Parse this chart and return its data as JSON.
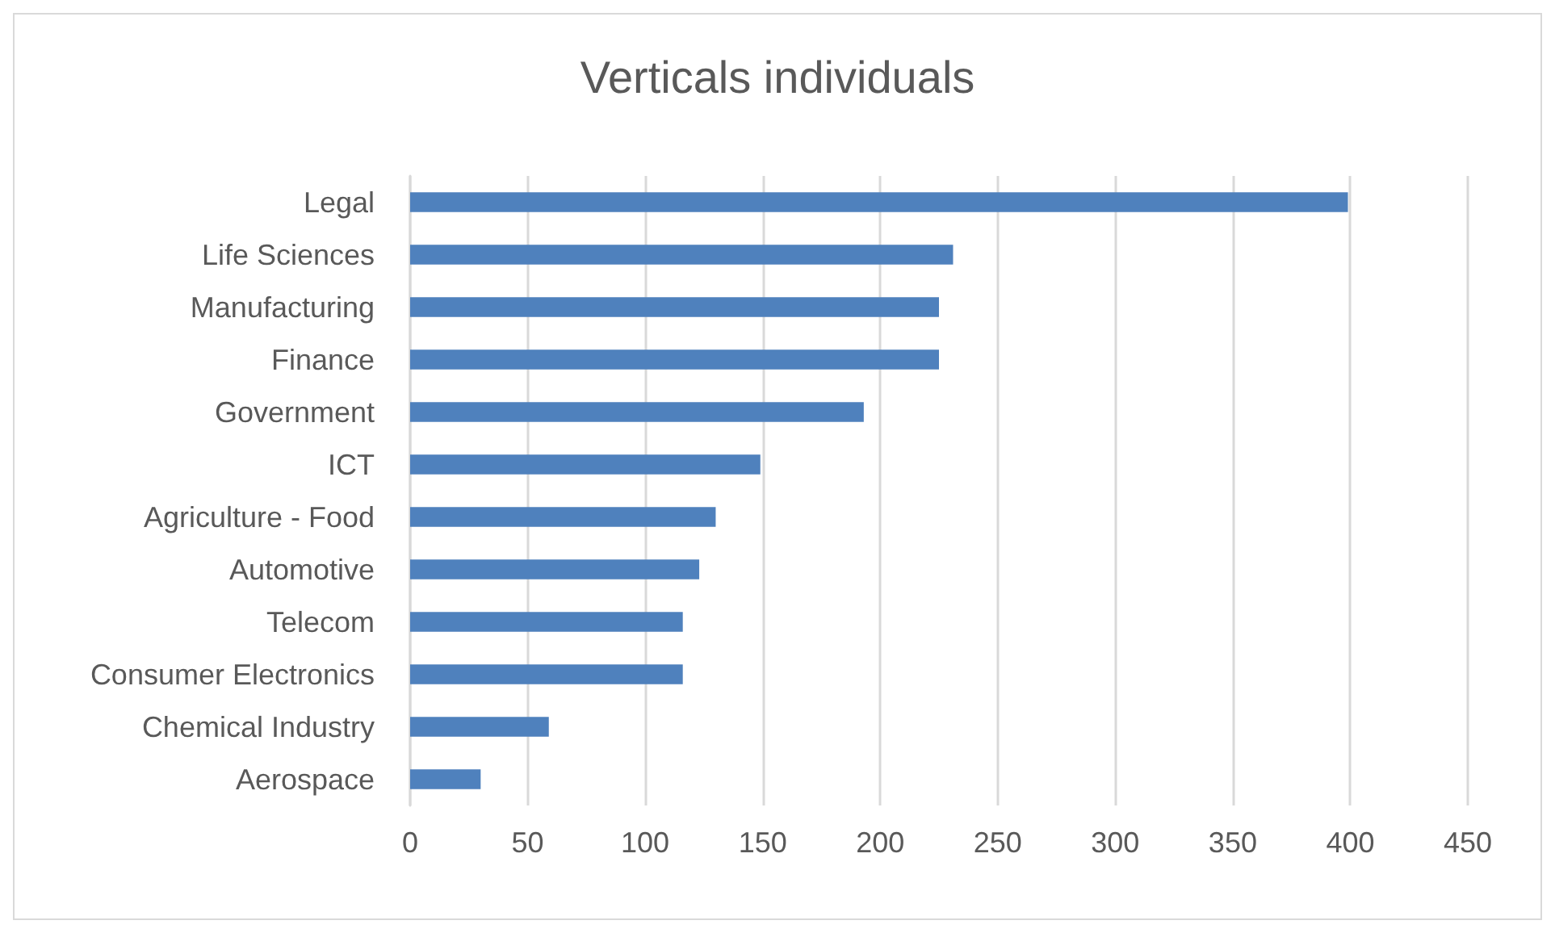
{
  "chart_data": {
    "type": "bar",
    "orientation": "horizontal",
    "title": "Verticals individuals",
    "categories": [
      "Legal",
      "Life Sciences",
      "Manufacturing",
      "Finance",
      "Government",
      "ICT",
      "Agriculture - Food",
      "Automotive",
      "Telecom",
      "Consumer Electronics",
      "Chemical Industry",
      "Aerospace"
    ],
    "values": [
      399,
      231,
      225,
      225,
      193,
      149,
      130,
      123,
      116,
      116,
      59,
      30
    ],
    "color": "#4f81bd",
    "xlim": [
      0,
      450
    ],
    "xticks": [
      0,
      50,
      100,
      150,
      200,
      250,
      300,
      350,
      400,
      450
    ],
    "grid": "x"
  }
}
